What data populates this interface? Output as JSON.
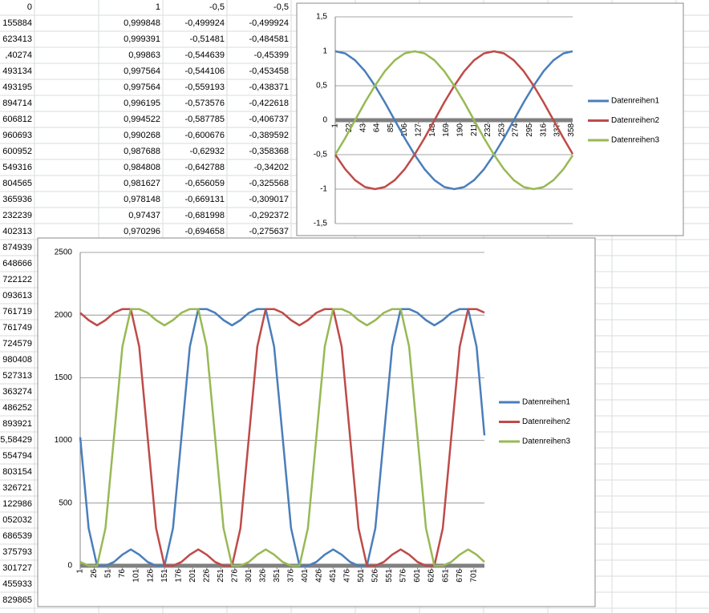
{
  "sheet": {
    "column_a": [
      "0",
      "155884",
      "623413",
      ",40274",
      "493134",
      "493195",
      "894714",
      "606812",
      "960693",
      "600952",
      "549316",
      "804565",
      "365936",
      "232239",
      "402313",
      "874939",
      "648666",
      "722122",
      "093613",
      "761719",
      "761749",
      "724579",
      "980408",
      "527313",
      "363274",
      "486252",
      "893921",
      "5,58429",
      "554794",
      "803154",
      "326721",
      "122986",
      "052032",
      "686539",
      "375793",
      "301727",
      "455933",
      "829865"
    ],
    "rows": [
      [
        "1",
        "-0,5",
        "-0,5"
      ],
      [
        "0,999848",
        "-0,499924",
        "-0,499924"
      ],
      [
        "0,999391",
        "-0,51481",
        "-0,484581"
      ],
      [
        "0,99863",
        "-0,544639",
        "-0,45399"
      ],
      [
        "0,997564",
        "-0,544106",
        "-0,453458"
      ],
      [
        "0,997564",
        "-0,559193",
        "-0,438371"
      ],
      [
        "0,996195",
        "-0,573576",
        "-0,422618"
      ],
      [
        "0,994522",
        "-0,587785",
        "-0,406737"
      ],
      [
        "0,990268",
        "-0,600676",
        "-0,389592"
      ],
      [
        "0,987688",
        "-0,62932",
        "-0,358368"
      ],
      [
        "0,984808",
        "-0,642788",
        "-0,34202"
      ],
      [
        "0,981627",
        "-0,656059",
        "-0,325568"
      ],
      [
        "0,978148",
        "-0,669131",
        "-0,309017"
      ],
      [
        "0,97437",
        "-0,681998",
        "-0,292372"
      ],
      [
        "0,970296",
        "-0,694658",
        "-0,275637"
      ]
    ]
  },
  "chart_data": [
    {
      "type": "line",
      "legend": "right",
      "grid": true,
      "x": [
        1,
        16,
        31,
        46,
        61,
        76,
        91,
        106,
        121,
        136,
        151,
        166,
        181,
        196,
        211,
        226,
        241,
        256,
        271,
        286,
        301,
        316,
        331,
        346,
        360
      ],
      "xlim": [
        1,
        360
      ],
      "xticks": [
        1,
        22,
        43,
        64,
        85,
        106,
        127,
        148,
        169,
        190,
        211,
        232,
        253,
        274,
        295,
        316,
        337,
        358
      ],
      "ylim": [
        -1.5,
        1.5
      ],
      "yticks": [
        {
          "value": -1.5,
          "label": "-1,5"
        },
        -1,
        {
          "value": -0.5,
          "label": "-0,5"
        },
        0,
        {
          "value": 0.5,
          "label": "0,5"
        },
        1,
        {
          "value": 1.5,
          "label": "1,5"
        }
      ],
      "series": [
        {
          "name": "Datenreihen1",
          "color": "#4a7ebb",
          "values": [
            1,
            0.97,
            0.87,
            0.71,
            0.5,
            0.26,
            0,
            -0.26,
            -0.5,
            -0.71,
            -0.87,
            -0.97,
            -1,
            -0.97,
            -0.87,
            -0.71,
            -0.5,
            -0.26,
            0,
            0.26,
            0.5,
            0.71,
            0.87,
            0.97,
            1
          ]
        },
        {
          "name": "Datenreihen2",
          "color": "#be4b48",
          "values": [
            -0.5,
            -0.71,
            -0.87,
            -0.97,
            -1,
            -0.97,
            -0.87,
            -0.71,
            -0.5,
            -0.26,
            0,
            0.26,
            0.5,
            0.71,
            0.87,
            0.97,
            1,
            0.97,
            0.87,
            0.71,
            0.5,
            0.26,
            0,
            -0.26,
            -0.49
          ]
        },
        {
          "name": "Datenreihen3",
          "color": "#98b954",
          "values": [
            -0.5,
            -0.26,
            0,
            0.26,
            0.5,
            0.71,
            0.87,
            0.97,
            1,
            0.97,
            0.87,
            0.71,
            0.5,
            0.26,
            0,
            -0.26,
            -0.5,
            -0.71,
            -0.87,
            -0.97,
            -1,
            -0.97,
            -0.87,
            -0.71,
            -0.51
          ]
        }
      ]
    },
    {
      "type": "line",
      "legend": "right",
      "grid": true,
      "x": [
        1,
        16,
        31,
        46,
        61,
        76,
        91,
        106,
        121,
        136,
        151,
        166,
        181,
        196,
        211,
        226,
        241,
        256,
        271,
        286,
        301,
        316,
        331,
        346,
        361,
        376,
        391,
        406,
        421,
        436,
        451,
        466,
        481,
        496,
        511,
        526,
        541,
        556,
        571,
        586,
        601,
        616,
        631,
        646,
        661,
        676,
        691,
        706,
        720
      ],
      "xlim": [
        1,
        720
      ],
      "xticks": [
        1,
        26,
        51,
        76,
        101,
        126,
        151,
        176,
        201,
        226,
        251,
        276,
        301,
        326,
        351,
        376,
        401,
        426,
        451,
        476,
        501,
        526,
        551,
        576,
        601,
        626,
        651,
        676,
        701
      ],
      "ylim": [
        0,
        2500
      ],
      "yticks": [
        0,
        500,
        1000,
        1500,
        2000,
        2500
      ],
      "series": [
        {
          "name": "Datenreihen1",
          "color": "#4a7ebb",
          "values": [
            1024,
            300,
            0,
            0,
            30,
            88,
            130,
            88,
            30,
            0,
            0,
            300,
            1024,
            1748,
            2048,
            2048,
            2018,
            1960,
            1918,
            1960,
            2018,
            2048,
            2048,
            1748,
            1024,
            300,
            0,
            0,
            30,
            88,
            130,
            88,
            30,
            0,
            0,
            300,
            1024,
            1748,
            2048,
            2048,
            2018,
            1960,
            1918,
            1960,
            2018,
            2048,
            2048,
            1748,
            1040
          ]
        },
        {
          "name": "Datenreihen2",
          "color": "#be4b48",
          "values": [
            2018,
            1960,
            1918,
            1960,
            2018,
            2048,
            2048,
            1748,
            1024,
            300,
            0,
            0,
            30,
            88,
            130,
            88,
            30,
            0,
            0,
            300,
            1024,
            1748,
            2048,
            2048,
            2018,
            1960,
            1918,
            1960,
            2018,
            2048,
            2048,
            1748,
            1024,
            300,
            0,
            0,
            30,
            88,
            130,
            88,
            30,
            0,
            0,
            300,
            1024,
            1748,
            2048,
            2048,
            2020
          ]
        },
        {
          "name": "Datenreihen3",
          "color": "#98b954",
          "values": [
            30,
            0,
            0,
            300,
            1024,
            1748,
            2048,
            2048,
            2018,
            1960,
            1918,
            1960,
            2018,
            2048,
            2048,
            1748,
            1024,
            300,
            0,
            0,
            30,
            88,
            130,
            88,
            30,
            0,
            0,
            300,
            1024,
            1748,
            2048,
            2048,
            2018,
            1960,
            1918,
            1960,
            2018,
            2048,
            2048,
            1748,
            1024,
            300,
            0,
            0,
            30,
            88,
            130,
            88,
            30
          ]
        }
      ]
    }
  ]
}
